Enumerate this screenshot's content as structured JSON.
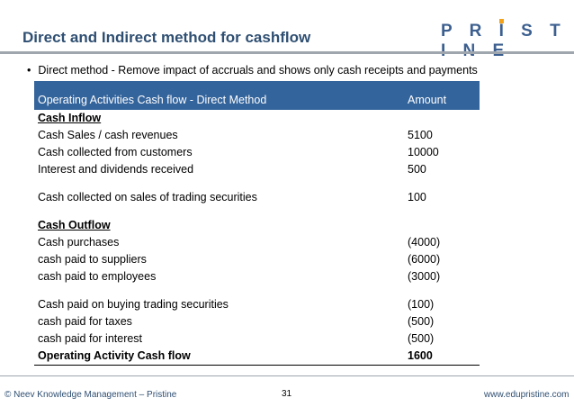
{
  "title": "Direct and Indirect method for cashflow",
  "logo_text": "PRISTINE",
  "logo_accent_color": "#f2a31b",
  "bullet": "Direct method -  Remove impact of accruals and shows only cash receipts and payments",
  "table": {
    "header_description": "Operating Activities Cash flow  - Direct Method",
    "header_amount": "Amount",
    "header_color": "#34649c",
    "rows": [
      {
        "desc": "Cash Inflow",
        "amount": ""
      },
      {
        "desc": "Cash Sales / cash revenues",
        "amount": "5100"
      },
      {
        "desc": "Cash collected from customers",
        "amount": "10000"
      },
      {
        "desc": "Interest and dividends received",
        "amount": "500"
      },
      {
        "desc": "Cash collected on sales of trading securities",
        "amount": "100"
      },
      {
        "desc": "Cash Outflow",
        "amount": ""
      },
      {
        "desc": "Cash purchases",
        "amount": "(4000)"
      },
      {
        "desc": "cash paid to suppliers",
        "amount": "(6000)"
      },
      {
        "desc": "cash paid to employees",
        "amount": "(3000)"
      },
      {
        "desc": "Cash paid on buying trading securities",
        "amount": "(100)"
      },
      {
        "desc": "cash paid for taxes",
        "amount": "(500)"
      },
      {
        "desc": "cash paid for interest",
        "amount": "(500)"
      },
      {
        "desc": "Operating Activity Cash flow",
        "amount": "1600"
      }
    ]
  },
  "footer": {
    "left": "© Neev Knowledge Management – Pristine",
    "page": "31",
    "right": "www.edupristine.com"
  }
}
